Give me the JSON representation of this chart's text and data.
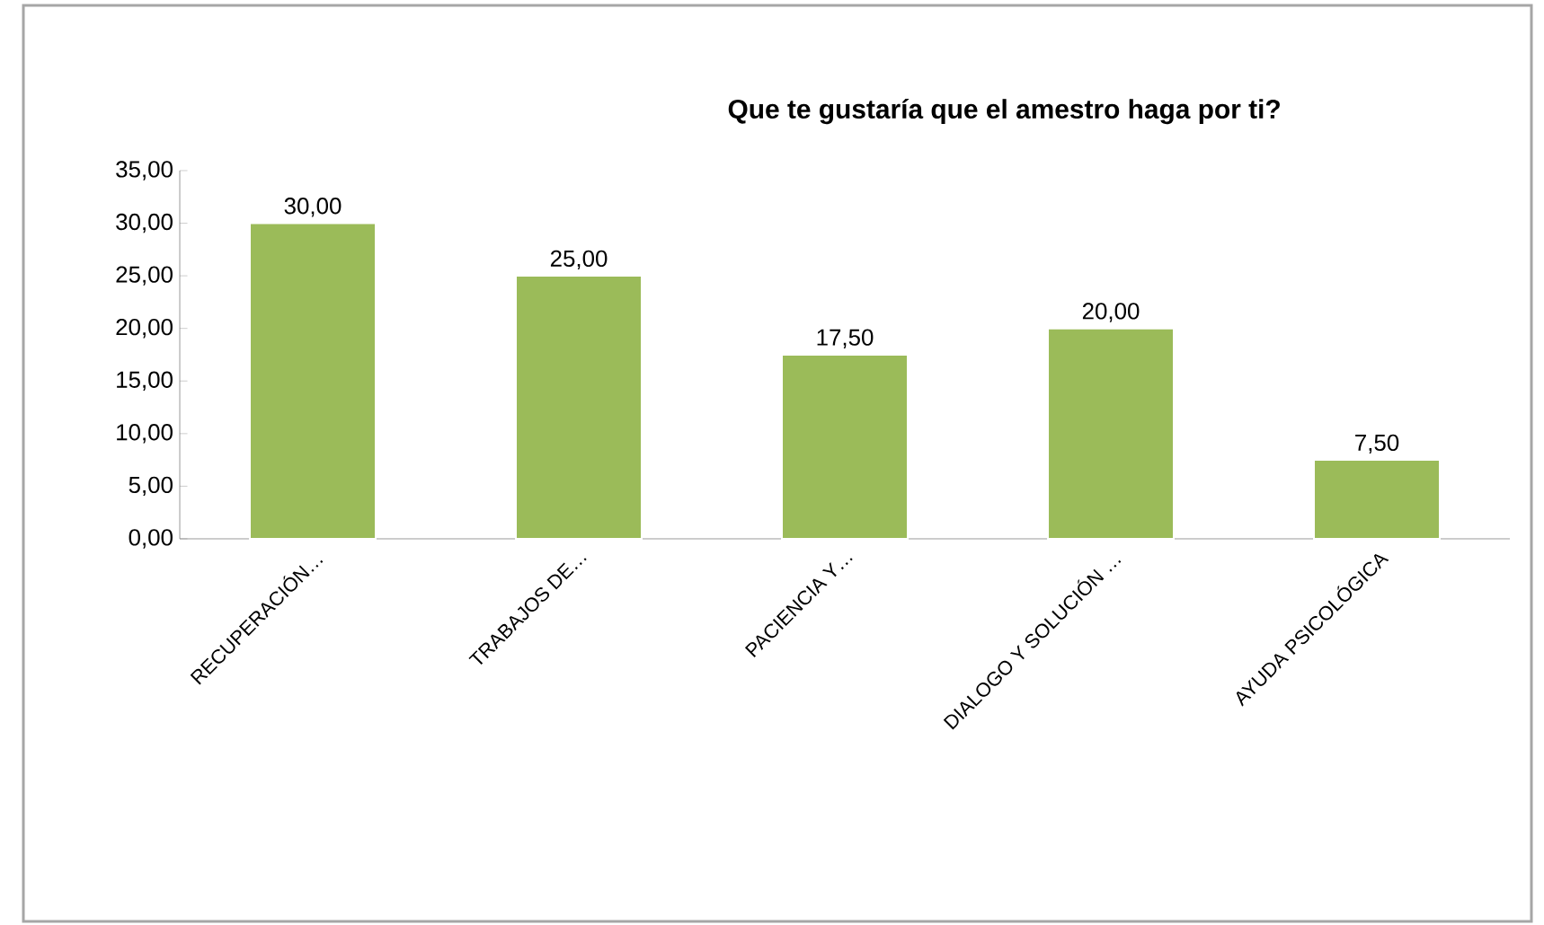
{
  "chart_data": {
    "type": "bar",
    "title": "Que te gustaría que el amestro haga por ti?",
    "categories": [
      "RECUPERACIÓN…",
      "TRABAJOS DE…",
      "PACIENCIA Y…",
      "DIALOGO Y SOLUCIÓN …",
      "AYUDA PSICOLÓGICA"
    ],
    "values": [
      30,
      25,
      17.5,
      20,
      7.5
    ],
    "value_labels": [
      "30,00",
      "25,00",
      "17,50",
      "20,00",
      "7,50"
    ],
    "color": "#9bbb59",
    "ylim": [
      0,
      35
    ],
    "yticks": [
      {
        "value": 0,
        "label": "0,00"
      },
      {
        "value": 5,
        "label": "5,00"
      },
      {
        "value": 10,
        "label": "10,00"
      },
      {
        "value": 15,
        "label": "15,00"
      },
      {
        "value": 20,
        "label": "20,00"
      },
      {
        "value": 25,
        "label": "25,00"
      },
      {
        "value": 30,
        "label": "30,00"
      },
      {
        "value": 35,
        "label": "35,00"
      }
    ]
  }
}
